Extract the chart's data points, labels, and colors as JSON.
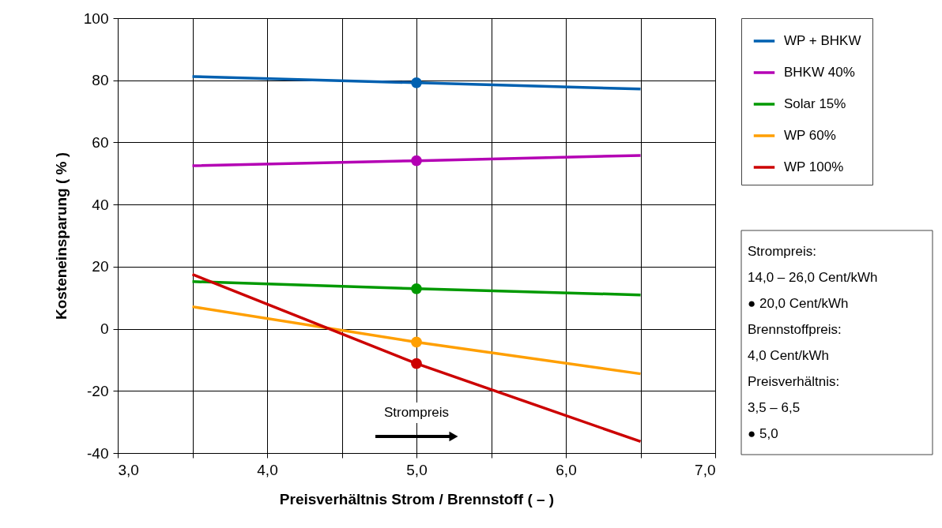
{
  "chart_data": {
    "type": "line",
    "xlabel": "Preisverhältnis Strom / Brennstoff  ( – )",
    "ylabel": "Kosteneinsparung  ( % )",
    "xlim": [
      3.0,
      7.0
    ],
    "xticks": [
      {
        "value": 3.0,
        "label": "3,0"
      },
      {
        "value": 3.5,
        "label": null
      },
      {
        "value": 4.0,
        "label": "4,0"
      },
      {
        "value": 4.5,
        "label": null
      },
      {
        "value": 5.0,
        "label": "5,0"
      },
      {
        "value": 5.5,
        "label": null
      },
      {
        "value": 6.0,
        "label": "6,0"
      },
      {
        "value": 6.5,
        "label": null
      },
      {
        "value": 7.0,
        "label": "7,0"
      }
    ],
    "ylim": [
      -40,
      100
    ],
    "yticks": [
      -40,
      -20,
      0,
      20,
      40,
      60,
      80,
      100
    ],
    "grid": true,
    "legend": "top right",
    "line_style": "solid",
    "series": [
      {
        "name": "WP + BHKW",
        "color": "#0060b0",
        "x": [
          3.5,
          5.0,
          6.5
        ],
        "values": [
          81.2,
          79.2,
          77.2
        ]
      },
      {
        "name": "BHKW 40%",
        "color": "#b400b4",
        "x": [
          3.5,
          5.0,
          6.5
        ],
        "values": [
          52.5,
          54.1,
          55.8
        ]
      },
      {
        "name": "Solar 15%",
        "color": "#009900",
        "x": [
          3.5,
          5.0,
          6.5
        ],
        "values": [
          15.2,
          12.9,
          10.9
        ]
      },
      {
        "name": "WP 60%",
        "color": "#ff9f00",
        "x": [
          3.5,
          5.0,
          6.5
        ],
        "values": [
          7.1,
          -4.3,
          -14.5
        ]
      },
      {
        "name": "WP 100%",
        "color": "#cc0000",
        "x": [
          3.5,
          5.0,
          6.5
        ],
        "values": [
          17.5,
          -11.2,
          -36.3
        ]
      },
      {
        "type": "scatter",
        "marker": "circle",
        "color": "#0060b0",
        "x": [
          5.0
        ],
        "values": [
          79.2
        ]
      },
      {
        "type": "scatter",
        "marker": "circle",
        "color": "#b400b4",
        "x": [
          5.0
        ],
        "values": [
          54.1
        ]
      },
      {
        "type": "scatter",
        "marker": "circle",
        "color": "#009900",
        "x": [
          5.0
        ],
        "values": [
          12.9
        ]
      },
      {
        "type": "scatter",
        "marker": "circle",
        "color": "#ff9f00",
        "x": [
          5.0
        ],
        "values": [
          -4.3
        ]
      },
      {
        "type": "scatter",
        "marker": "circle",
        "color": "#cc0000",
        "x": [
          5.0
        ],
        "values": [
          -11.2
        ]
      }
    ],
    "annotations": [
      "Strompreis",
      "Strompreis:",
      "14,0 – 26,0 Cent/kWh",
      "● 20,0 Cent/kWh",
      "Brennstoffpreis:",
      "4,0 Cent/kWh",
      "Preisverhältnis:",
      "3,5 – 6,5",
      "● 5,0"
    ]
  }
}
